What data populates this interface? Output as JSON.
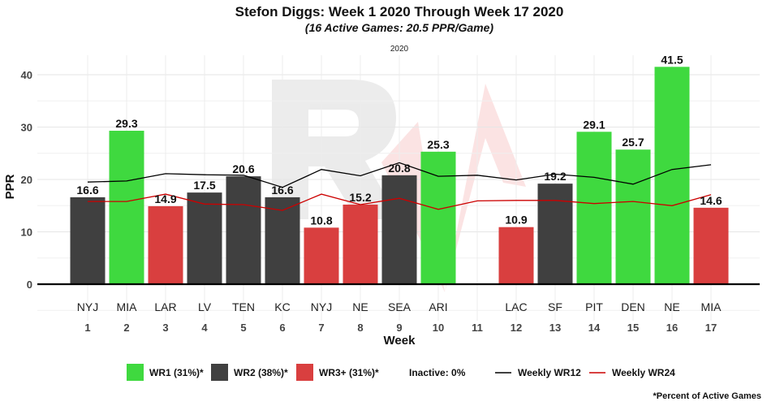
{
  "chart_data": {
    "type": "bar",
    "title": "Stefon Diggs: Week 1 2020 Through Week 17 2020",
    "subtitle": "(16 Active Games: 20.5 PPR/Game)",
    "facet_label": "2020",
    "xlabel": "Week",
    "ylabel": "PPR",
    "ylim": [
      -5.5,
      45
    ],
    "yticks": [
      0,
      10,
      20,
      30,
      40
    ],
    "weeks": [
      1,
      2,
      3,
      4,
      5,
      6,
      7,
      8,
      9,
      10,
      11,
      12,
      13,
      14,
      15,
      16,
      17
    ],
    "opponents": [
      "NYJ",
      "MIA",
      "LAR",
      "LV",
      "TEN",
      "KC",
      "NYJ",
      "NE",
      "SEA",
      "ARI",
      "",
      "LAC",
      "SF",
      "PIT",
      "DEN",
      "NE",
      "MIA"
    ],
    "values": [
      16.6,
      29.3,
      14.9,
      17.5,
      20.6,
      16.6,
      10.8,
      15.2,
      20.8,
      25.3,
      null,
      10.9,
      19.2,
      29.1,
      25.7,
      41.5,
      14.6
    ],
    "value_labels": [
      "16.6",
      "29.3",
      "14.9",
      "17.5",
      "20.6",
      "16.6",
      "10.8",
      "15.2",
      "20.8",
      "25.3",
      "",
      "10.9",
      "19.2",
      "29.1",
      "25.7",
      "41.5",
      "14.6"
    ],
    "tiers": [
      "WR2",
      "WR1",
      "WR3+",
      "WR2",
      "WR2",
      "WR2",
      "WR3+",
      "WR3+",
      "WR2",
      "WR1",
      "",
      "WR3+",
      "WR2",
      "WR1",
      "WR1",
      "WR1",
      "WR3+"
    ],
    "tier_colors": {
      "WR1": "#3fd93f",
      "WR2": "#404040",
      "WR3+": "#d93f3f"
    },
    "lines": [
      {
        "name": "Weekly WR12",
        "color": "#000000",
        "values": [
          19.5,
          19.7,
          21.1,
          20.9,
          20.8,
          18.5,
          21.9,
          20.7,
          23.2,
          20.6,
          20.8,
          19.9,
          21.0,
          20.4,
          19.1,
          21.9,
          22.8
        ]
      },
      {
        "name": "Weekly WR24",
        "color": "#cc0000",
        "values": [
          15.8,
          15.8,
          17.2,
          15.3,
          15.2,
          14.1,
          17.2,
          15.2,
          16.4,
          14.3,
          15.9,
          16.0,
          16.0,
          15.4,
          15.8,
          15.0,
          17.1
        ]
      }
    ],
    "grid": true,
    "legend_position": "bottom"
  },
  "legend": {
    "items": [
      {
        "label": "WR1 (31%)*",
        "kind": "box",
        "color": "#3fd93f"
      },
      {
        "label": "WR2 (38%)*",
        "kind": "box",
        "color": "#404040"
      },
      {
        "label": "WR3+ (31%)*",
        "kind": "box",
        "color": "#d93f3f"
      },
      {
        "label": "Inactive: 0%",
        "kind": "none",
        "color": ""
      },
      {
        "label": "Weekly WR12",
        "kind": "line",
        "color": "#000000"
      },
      {
        "label": "Weekly WR24",
        "kind": "line",
        "color": "#cc0000"
      }
    ]
  },
  "caption": "*Percent of Active Games"
}
